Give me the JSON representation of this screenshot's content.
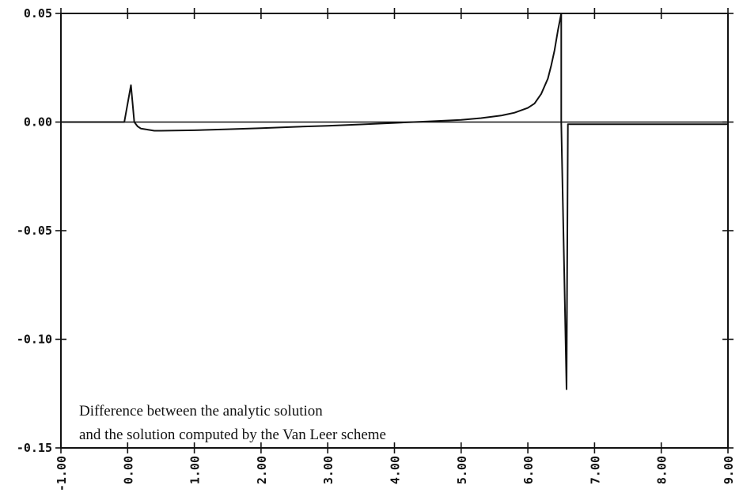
{
  "chart_data": {
    "type": "line",
    "title": "",
    "xlabel": "",
    "ylabel": "",
    "xlim": [
      -1.0,
      9.0
    ],
    "ylim": [
      -0.15,
      0.05
    ],
    "grid": false,
    "x_ticks": [
      -1,
      0,
      1,
      2,
      3,
      4,
      5,
      6,
      7,
      8,
      9
    ],
    "x_tick_labels": [
      "-1.00",
      "0.00",
      "1.00",
      "2.00",
      "3.00",
      "4.00",
      "5.00",
      "6.00",
      "7.00",
      "8.00",
      "9.00"
    ],
    "y_ticks": [
      0.05,
      0.0,
      -0.05,
      -0.1,
      -0.15
    ],
    "y_tick_labels": [
      "0.05",
      "0.00",
      "-0.05",
      "-0.10",
      "-0.15"
    ],
    "annotation": {
      "line1": "Difference between the analytic solution",
      "line2": "and the solution computed by the Van Leer scheme"
    },
    "series": [
      {
        "color": "#111111",
        "x": [
          -1.0,
          -0.05,
          0.05,
          0.1,
          0.15,
          0.2,
          0.3,
          0.4,
          0.5,
          1.0,
          1.5,
          2.0,
          2.5,
          3.0,
          3.5,
          4.0,
          4.5,
          5.0,
          5.3,
          5.6,
          5.8,
          6.0,
          6.1,
          6.2,
          6.3,
          6.35,
          6.4,
          6.45,
          6.5,
          6.5,
          6.58,
          6.6,
          6.66,
          6.7,
          9.0
        ],
        "y": [
          0.0,
          0.0,
          0.017,
          0.0,
          -0.002,
          -0.003,
          -0.0035,
          -0.004,
          -0.004,
          -0.0038,
          -0.0033,
          -0.0028,
          -0.0022,
          -0.0017,
          -0.0011,
          -0.0004,
          0.0003,
          0.001,
          0.0018,
          0.003,
          0.0043,
          0.0065,
          0.0085,
          0.013,
          0.02,
          0.026,
          0.033,
          0.042,
          0.05,
          0.0,
          -0.123,
          -0.001,
          -0.001,
          -0.001,
          -0.001
        ]
      }
    ]
  }
}
